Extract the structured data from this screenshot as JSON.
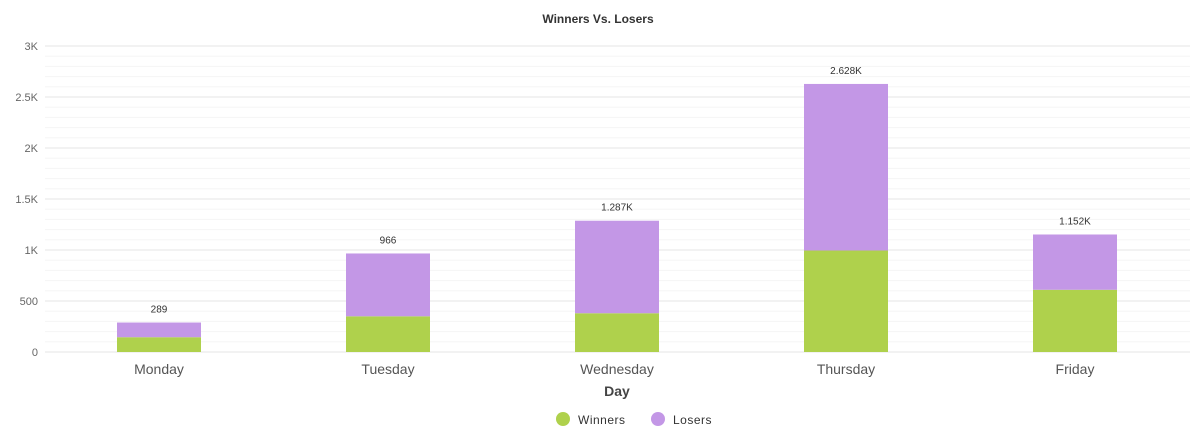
{
  "chart_data": {
    "type": "bar",
    "stacked": true,
    "title": "Winners Vs. Losers",
    "xlabel": "Day",
    "ylabel": "",
    "categories": [
      "Monday",
      "Tuesday",
      "Wednesday",
      "Thursday",
      "Friday"
    ],
    "series": [
      {
        "name": "Winners",
        "color": "#afd14c",
        "values": [
          145,
          350,
          380,
          995,
          610
        ]
      },
      {
        "name": "Losers",
        "color": "#c397e6",
        "values": [
          144,
          616,
          907,
          1633,
          542
        ]
      }
    ],
    "totals": [
      289,
      966,
      1287,
      2628,
      1152
    ],
    "total_labels": [
      "289",
      "966",
      "1.287K",
      "2.628K",
      "1.152K"
    ],
    "ylim": [
      0,
      3000
    ],
    "yticks": [
      0,
      500,
      1000,
      1500,
      2000,
      2500,
      3000
    ],
    "ytick_labels": [
      "0",
      "500",
      "1K",
      "1.5K",
      "2K",
      "2.5K",
      "3K"
    ],
    "grid": true,
    "legend_position": "bottom-center"
  }
}
